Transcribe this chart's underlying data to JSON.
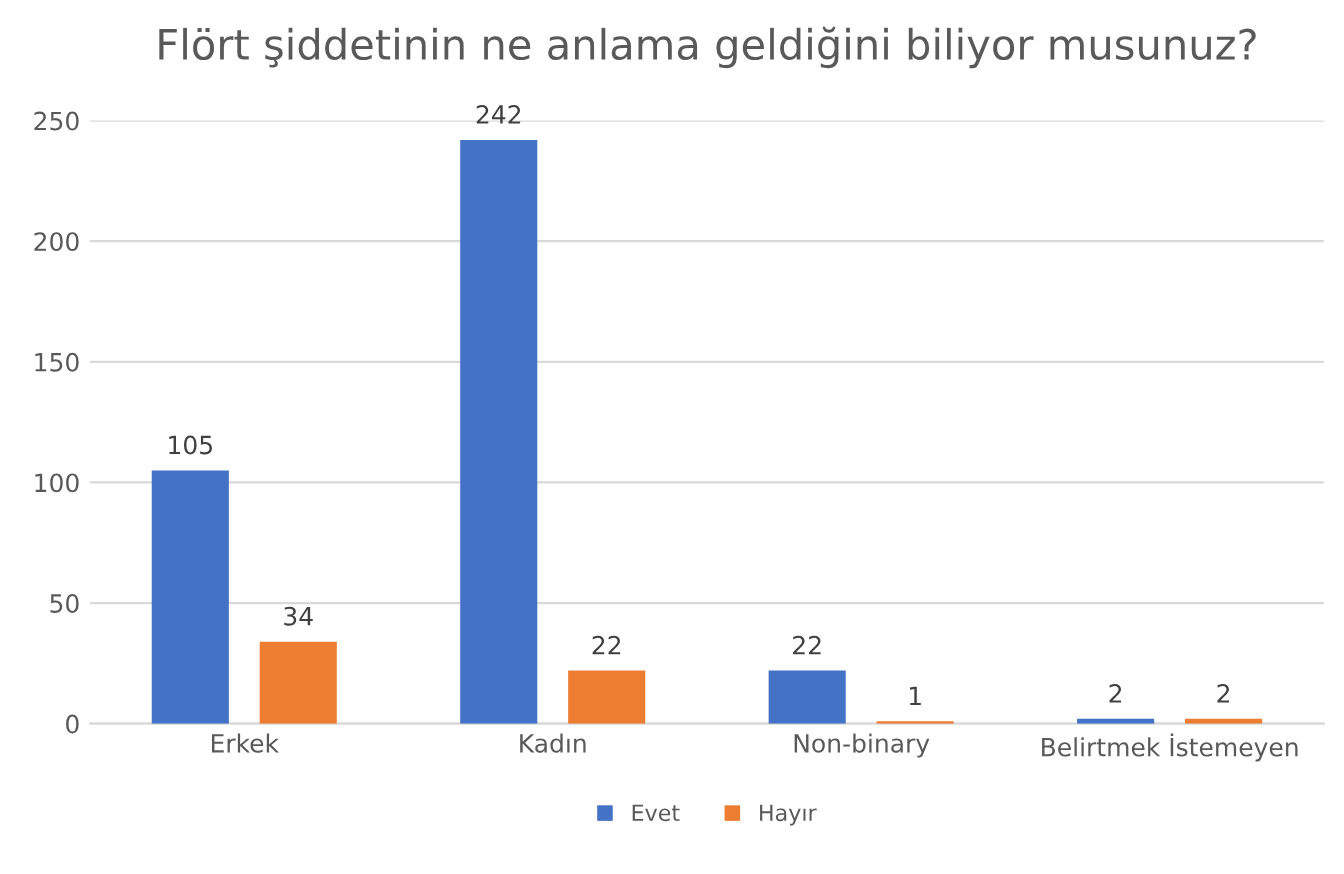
{
  "chart_data": {
    "type": "bar",
    "title": "Flört şiddetinin ne anlama geldiğini biliyor musunuz?",
    "categories": [
      "Erkek",
      "Kadın",
      "Non-binary",
      "Belirtmek İstemeyen"
    ],
    "series": [
      {
        "name": "Evet",
        "color": "#4472c4",
        "values": [
          105,
          242,
          22,
          2
        ]
      },
      {
        "name": "Hayır",
        "color": "#ed7d31",
        "values": [
          34,
          22,
          1,
          2
        ]
      }
    ],
    "ylim": [
      0,
      250
    ],
    "yticks": [
      0,
      50,
      100,
      150,
      200,
      250
    ],
    "grid": "y",
    "legend": "bottom",
    "data_labels": true
  }
}
